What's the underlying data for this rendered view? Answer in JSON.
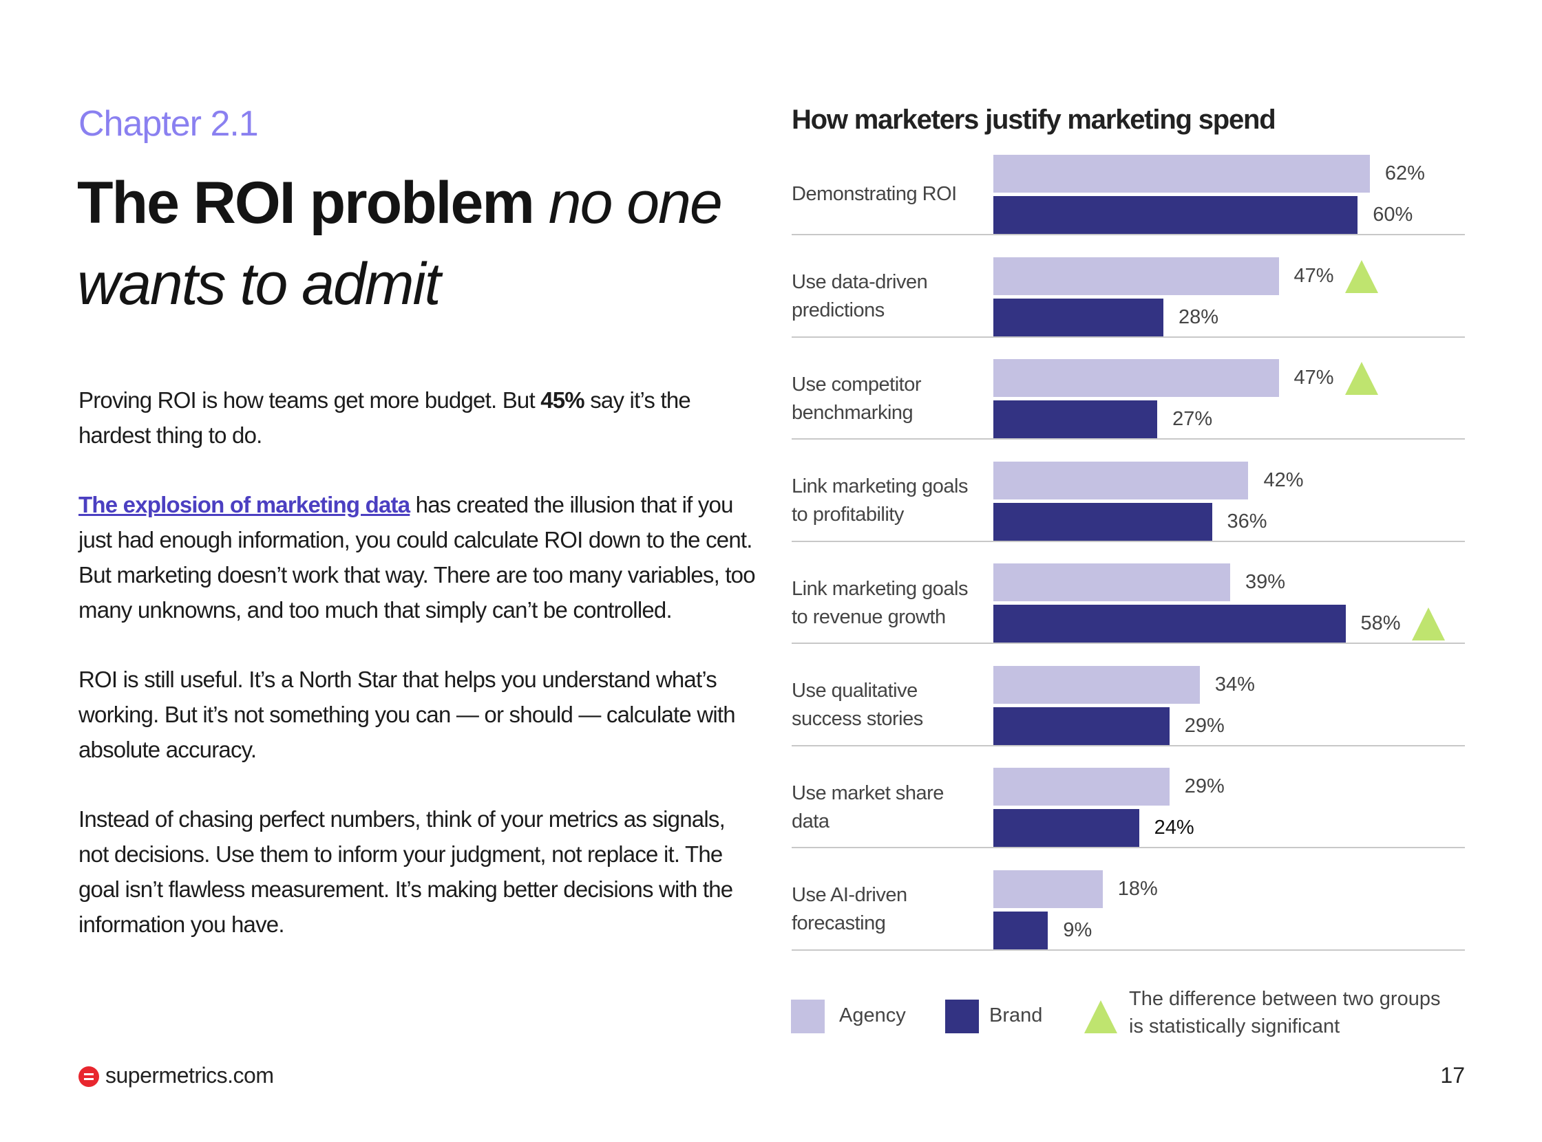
{
  "chapter": "Chapter 2.1",
  "title": {
    "bold": "The ROI problem",
    "italic_1": "no one",
    "italic_2": "wants to admit"
  },
  "paragraphs": {
    "p1": {
      "a": "Proving ROI is how teams get more budget. But ",
      "bold": "45%",
      "b": " say it’s the hardest thing to do."
    },
    "p2": {
      "link": "The explosion of marketing data",
      "rest": " has created the illusion that if you just had enough information, you could calculate ROI down to the cent. But marketing doesn’t work that way. There are too many variables, too many unknowns, and too much that simply can’t be controlled."
    },
    "p3": "ROI is still useful. It’s a North Star that helps you understand what’s working. But it’s not something you can — or should — calculate with absolute accuracy.",
    "p4": "Instead of chasing perfect numbers, think of your metrics as signals, not decisions. Use them to inform your judgment, not replace it. The goal isn’t flawless measurement. It’s making better decisions with the information you have."
  },
  "chart_data": {
    "type": "bar",
    "orientation": "horizontal",
    "title": "How marketers justify marketing spend",
    "categories": [
      [
        "Demonstrating ROI"
      ],
      [
        "Use data-driven",
        "predictions"
      ],
      [
        "Use competitor",
        "benchmarking"
      ],
      [
        "Link marketing goals",
        "to profitability"
      ],
      [
        "Link marketing goals",
        "to revenue growth"
      ],
      [
        "Use qualitative",
        "success stories"
      ],
      [
        "Use market share",
        "data"
      ],
      [
        "Use AI-driven",
        "forecasting"
      ]
    ],
    "series": [
      {
        "name": "Agency",
        "color": "#c4c1e2",
        "values": [
          62,
          47,
          47,
          42,
          39,
          34,
          29,
          18
        ]
      },
      {
        "name": "Brand",
        "color": "#333383",
        "values": [
          60,
          28,
          27,
          36,
          58,
          29,
          24,
          9
        ]
      }
    ],
    "significant": [
      null,
      "Agency",
      "Agency",
      null,
      "Brand",
      null,
      null,
      null
    ],
    "unit": "%",
    "legend": {
      "agency": "Agency",
      "brand": "Brand",
      "significance": [
        "The difference between two groups",
        "is statistically significant"
      ]
    },
    "significance_color": "#bfe46f"
  },
  "footer": {
    "site": "supermetrics.com",
    "page": "17"
  }
}
